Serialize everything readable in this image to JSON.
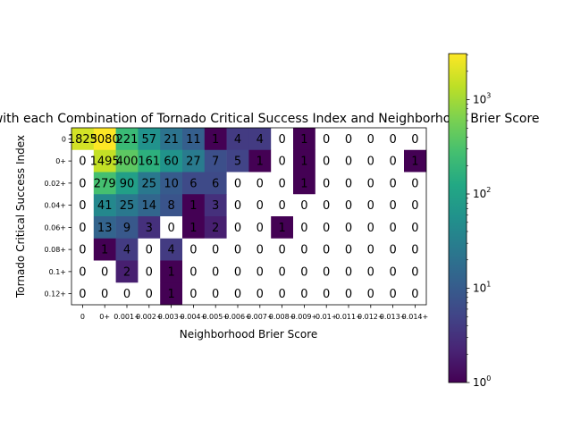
{
  "chart_data": {
    "type": "heatmap",
    "title": "Days with each Combination of Tornado Critical Success Index and Neighborhood Brier Score",
    "xlabel": "Neighborhood Brier Score",
    "ylabel": "Tornado Critical Success Index",
    "x_tick_labels": [
      "0",
      "0+",
      "0.001+",
      "0.002+",
      "0.003+",
      "0.004+",
      "0.005+",
      "0.006+",
      "0.007+",
      "0.008+",
      "0.009+",
      "0.01+",
      "0.011+",
      "0.012+",
      "0.013+",
      "0.014+"
    ],
    "y_tick_labels": [
      "0",
      "0+",
      "0.02+",
      "0.04+",
      "0.06+",
      "0.08+",
      "0.1+",
      "0.12+"
    ],
    "values": [
      [
        1825,
        3080,
        221,
        57,
        21,
        11,
        1,
        4,
        4,
        0,
        1,
        0,
        0,
        0,
        0,
        0
      ],
      [
        0,
        1495,
        400,
        161,
        60,
        27,
        7,
        5,
        1,
        0,
        1,
        0,
        0,
        0,
        0,
        1
      ],
      [
        0,
        279,
        90,
        25,
        10,
        6,
        6,
        0,
        0,
        0,
        1,
        0,
        0,
        0,
        0,
        0
      ],
      [
        0,
        41,
        25,
        14,
        8,
        1,
        3,
        0,
        0,
        0,
        0,
        0,
        0,
        0,
        0,
        0
      ],
      [
        0,
        13,
        9,
        3,
        0,
        1,
        2,
        0,
        0,
        1,
        0,
        0,
        0,
        0,
        0,
        0
      ],
      [
        0,
        1,
        4,
        0,
        4,
        0,
        0,
        0,
        0,
        0,
        0,
        0,
        0,
        0,
        0,
        0
      ],
      [
        0,
        0,
        2,
        0,
        1,
        0,
        0,
        0,
        0,
        0,
        0,
        0,
        0,
        0,
        0,
        0
      ],
      [
        0,
        0,
        0,
        0,
        1,
        0,
        0,
        0,
        0,
        0,
        0,
        0,
        0,
        0,
        0,
        0
      ]
    ],
    "color_scale": "viridis",
    "log_scale": true,
    "colorbar_range": [
      1,
      3080
    ],
    "colorbar_ticks": [
      {
        "base": "10",
        "exp": "0",
        "value": 1
      },
      {
        "base": "10",
        "exp": "1",
        "value": 10
      },
      {
        "base": "10",
        "exp": "2",
        "value": 100
      },
      {
        "base": "10",
        "exp": "3",
        "value": 1000
      }
    ],
    "zero_cells_color": "#ffffff",
    "grid": false
  }
}
